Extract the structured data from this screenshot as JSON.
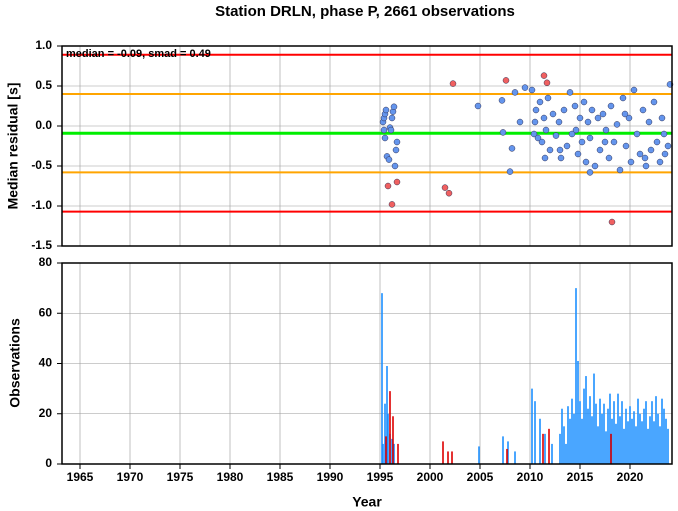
{
  "chart_data": [
    {
      "type": "scatter",
      "title": "Station DRLN, phase P, 2661 observations",
      "ylabel": "Median residual [s]",
      "annotation": "median = -0.09, smad = 0.49",
      "xlim": [
        1963.2,
        2024.2
      ],
      "ylim": [
        -1.5,
        1.0
      ],
      "yticks": [
        {
          "value": 1,
          "label": "1.0"
        },
        0.5,
        {
          "value": 0,
          "label": "0.0"
        },
        -0.5,
        {
          "value": -1,
          "label": "-1.0"
        },
        -1.5
      ],
      "grid": true,
      "hlines": [
        {
          "value": 0.89,
          "color": "#ff0000"
        },
        {
          "value": 0.4,
          "color": "#ffa500"
        },
        {
          "value": -0.09,
          "color": "#00ee00"
        },
        {
          "value": -0.58,
          "color": "#ffa500"
        },
        {
          "value": -1.07,
          "color": "#ff0000"
        }
      ],
      "series": [
        {
          "color": "#6495ed",
          "x": [
            1995.3,
            1995.4,
            1995.5,
            1995.6,
            1995.5,
            1995.7,
            1995.9,
            1996.0,
            1996.1,
            1996.2,
            1996.3,
            1996.4,
            1996.5,
            1996.6,
            1996.7,
            1995.4,
            2004.8,
            2007.3,
            2007.2,
            2008.0,
            2008.2,
            2008.5,
            2009.0,
            2009.5,
            2010.2,
            2010.4,
            2010.6,
            2010.8,
            2011.0,
            2011.2,
            2011.4,
            2011.6,
            2011.8,
            2012.0,
            2012.3,
            2012.6,
            2012.9,
            2013.1,
            2013.4,
            2013.7,
            2014.0,
            2014.2,
            2014.5,
            2014.8,
            2015.0,
            2015.2,
            2015.4,
            2015.6,
            2015.8,
            2016.0,
            2016.2,
            2016.5,
            2016.8,
            2017.0,
            2017.3,
            2017.6,
            2017.9,
            2018.1,
            2018.4,
            2018.7,
            2019.0,
            2019.3,
            2019.6,
            2019.9,
            2020.1,
            2020.4,
            2020.7,
            2021.0,
            2021.3,
            2021.6,
            2021.9,
            2022.1,
            2022.4,
            2022.7,
            2023.0,
            2023.2,
            2023.5,
            2023.8,
            2024.0,
            2010.5,
            2011.5,
            2013.0,
            2014.6,
            2016.0,
            2017.5,
            2019.5,
            2021.5,
            2023.4
          ],
          "y": [
            0.05,
            0.1,
            0.15,
            0.2,
            -0.15,
            -0.38,
            -0.42,
            -0.02,
            -0.05,
            0.1,
            0.18,
            0.24,
            -0.5,
            -0.3,
            -0.2,
            -0.05,
            0.25,
            -0.08,
            0.32,
            -0.57,
            -0.28,
            0.42,
            0.05,
            0.48,
            0.45,
            -0.1,
            0.2,
            -0.15,
            0.3,
            -0.2,
            0.1,
            -0.05,
            0.35,
            -0.3,
            0.15,
            -0.12,
            0.05,
            -0.4,
            0.2,
            -0.25,
            0.42,
            -0.1,
            0.25,
            -0.35,
            0.1,
            -0.2,
            0.3,
            -0.45,
            0.05,
            -0.15,
            0.2,
            -0.5,
            0.1,
            -0.3,
            0.15,
            -0.05,
            -0.4,
            0.25,
            -0.2,
            0.02,
            -0.55,
            0.35,
            -0.25,
            0.1,
            -0.45,
            0.45,
            -0.1,
            -0.35,
            0.2,
            -0.5,
            0.05,
            -0.3,
            0.3,
            -0.2,
            -0.45,
            0.1,
            -0.35,
            -0.25,
            0.52,
            0.05,
            -0.4,
            -0.3,
            -0.05,
            -0.58,
            -0.2,
            0.15,
            -0.4,
            -0.1
          ]
        },
        {
          "color": "#f06060",
          "x": [
            1995.8,
            1996.2,
            1996.7,
            2001.5,
            2001.9,
            2002.3,
            2007.6,
            2011.4,
            2011.7,
            2018.2
          ],
          "y": [
            -0.75,
            -0.98,
            -0.7,
            -0.77,
            -0.84,
            0.53,
            0.57,
            0.63,
            0.54,
            -1.2
          ]
        }
      ]
    },
    {
      "type": "bar",
      "ylabel": "Observations",
      "xlabel": "Year",
      "xlim": [
        1963.2,
        2024.2
      ],
      "ylim": [
        0,
        80
      ],
      "xticks": [
        1965,
        1970,
        1975,
        1980,
        1985,
        1990,
        1995,
        2000,
        2005,
        2010,
        2015,
        2020
      ],
      "yticks": [
        0,
        20,
        40,
        60,
        80
      ],
      "grid": true,
      "series": [
        {
          "color": "#1e90ff",
          "x": [
            1995.2,
            1995.3,
            1995.5,
            1995.7,
            1995.8,
            1996.0,
            1996.2,
            1996.4,
            2004.9,
            2007.3,
            2007.8,
            2008.5,
            2010.2,
            2010.5,
            2011.0,
            2011.5,
            2012.2,
            2013.0,
            2013.2,
            2013.4,
            2013.6,
            2013.8,
            2014.0,
            2014.2,
            2014.4,
            2014.6,
            2014.8,
            2015.0,
            2015.2,
            2015.4,
            2015.6,
            2015.8,
            2016.0,
            2016.2,
            2016.4,
            2016.6,
            2016.8,
            2017.0,
            2017.2,
            2017.4,
            2017.6,
            2017.8,
            2018.0,
            2018.2,
            2018.4,
            2018.6,
            2018.8,
            2019.0,
            2019.2,
            2019.4,
            2019.6,
            2019.8,
            2020.0,
            2020.2,
            2020.4,
            2020.6,
            2020.8,
            2021.0,
            2021.2,
            2021.4,
            2021.6,
            2021.8,
            2022.0,
            2022.2,
            2022.4,
            2022.6,
            2022.8,
            2023.0,
            2023.2,
            2023.4,
            2023.6,
            2023.8
          ],
          "values": [
            68,
            8,
            24,
            39,
            20,
            12,
            10,
            8,
            7,
            11,
            9,
            5,
            30,
            25,
            18,
            12,
            8,
            12,
            22,
            15,
            8,
            23,
            18,
            26,
            20,
            70,
            41,
            25,
            18,
            30,
            35,
            22,
            27,
            19,
            36,
            24,
            15,
            26,
            20,
            24,
            13,
            22,
            28,
            18,
            25,
            16,
            28,
            19,
            25,
            14,
            22,
            17,
            23,
            18,
            21,
            15,
            26,
            20,
            17,
            22,
            25,
            14,
            19,
            25,
            17,
            27,
            20,
            15,
            26,
            22,
            18,
            14
          ]
        },
        {
          "color": "#dd0000",
          "x": [
            1995.6,
            1996.0,
            1996.3,
            1996.8,
            2001.3,
            2001.8,
            2002.2,
            2007.7,
            2011.3,
            2011.9,
            2018.1
          ],
          "values": [
            11,
            29,
            19,
            8,
            9,
            5,
            5,
            6,
            12,
            14,
            12
          ]
        }
      ]
    }
  ]
}
